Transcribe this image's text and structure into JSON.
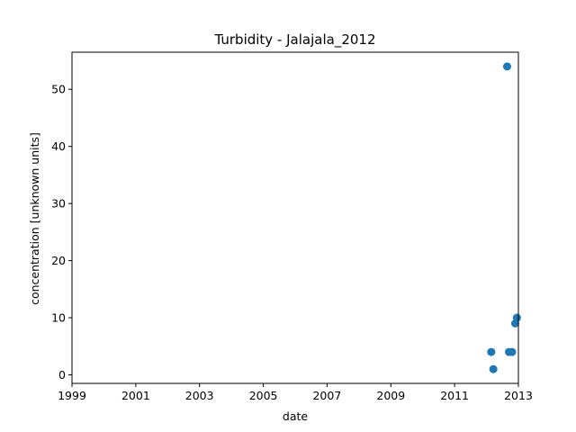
{
  "chart_data": {
    "type": "scatter",
    "title": "Turbidity - Jalajala_2012",
    "xlabel": "date",
    "ylabel": "concentration [unknown units]",
    "xlim": [
      "1999-01-01",
      "2013-01-01"
    ],
    "ylim": [
      -1.5,
      56.5
    ],
    "x_ticks": [
      "1999",
      "2001",
      "2003",
      "2005",
      "2007",
      "2009",
      "2011",
      "2013"
    ],
    "y_ticks": [
      0,
      10,
      20,
      30,
      40,
      50
    ],
    "grid": false,
    "marker_color": "#1f77b4",
    "points": [
      {
        "x": "2012-02-25",
        "y": 4
      },
      {
        "x": "2012-03-20",
        "y": 1
      },
      {
        "x": "2012-08-25",
        "y": 54
      },
      {
        "x": "2012-09-15",
        "y": 4
      },
      {
        "x": "2012-10-20",
        "y": 4
      },
      {
        "x": "2012-11-25",
        "y": 9
      },
      {
        "x": "2012-12-15",
        "y": 10
      }
    ]
  }
}
